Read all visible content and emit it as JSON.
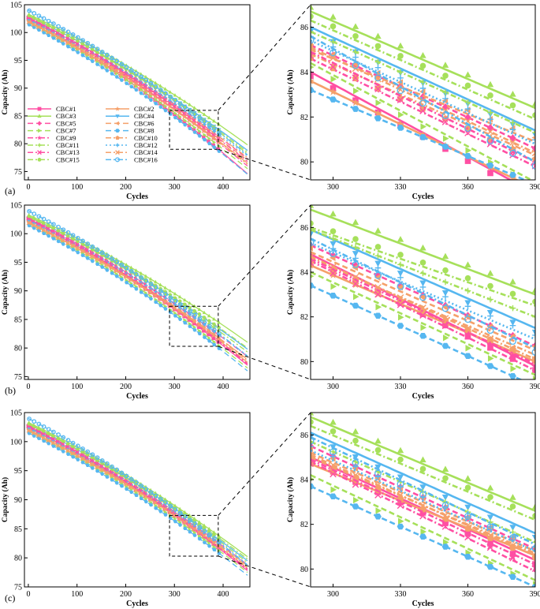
{
  "figure": {
    "panels": [
      {
        "label": "(a)"
      },
      {
        "label": "(b)"
      },
      {
        "label": "(c)"
      }
    ]
  },
  "series_styles": [
    {
      "name": "CBC#1",
      "color": "#ff4fa3",
      "dash": "solid",
      "marker": "square"
    },
    {
      "name": "CBC#2",
      "color": "#f5a06a",
      "dash": "solid",
      "marker": "star"
    },
    {
      "name": "CBC#3",
      "color": "#a6e05a",
      "dash": "solid",
      "marker": "triangle-up"
    },
    {
      "name": "CBC#4",
      "color": "#56b7f0",
      "dash": "solid",
      "marker": "triangle-down"
    },
    {
      "name": "CBC#5",
      "color": "#ff4fa3",
      "dash": "dashed",
      "marker": "diamond"
    },
    {
      "name": "CBC#6",
      "color": "#f5a06a",
      "dash": "dashed",
      "marker": "triangle-left"
    },
    {
      "name": "CBC#7",
      "color": "#a6e05a",
      "dash": "dashed",
      "marker": "triangle-right"
    },
    {
      "name": "CBC#8",
      "color": "#56b7f0",
      "dash": "dashed",
      "marker": "hexagon"
    },
    {
      "name": "CBC#9",
      "color": "#ff4fa3",
      "dash": "dashdot",
      "marker": "star"
    },
    {
      "name": "CBC#10",
      "color": "#f5a06a",
      "dash": "dashdot",
      "marker": "pentagon"
    },
    {
      "name": "CBC#11",
      "color": "#a6e05a",
      "dash": "dashdot",
      "marker": "plus"
    },
    {
      "name": "CBC#12",
      "color": "#56b7f0",
      "dash": "dotted",
      "marker": "plus"
    },
    {
      "name": "CBC#13",
      "color": "#ff4fa3",
      "dash": "dashdot",
      "marker": "x"
    },
    {
      "name": "CBC#14",
      "color": "#f5a06a",
      "dash": "dashdot",
      "marker": "x"
    },
    {
      "name": "CBC#15",
      "color": "#a6e05a",
      "dash": "dashdot",
      "marker": "circle"
    },
    {
      "name": "CBC#16",
      "color": "#56b7f0",
      "dash": "dashdot",
      "marker": "ring"
    }
  ],
  "chart_data": [
    {
      "id": "a-main",
      "type": "line",
      "xlabel": "Cycles",
      "ylabel": "Capacity (Ah)",
      "xlim": [
        -8,
        455
      ],
      "ylim": [
        73.5,
        105
      ],
      "xticks": [
        0,
        100,
        200,
        300,
        400
      ],
      "yticks": [
        75,
        80,
        85,
        90,
        95,
        100,
        105
      ],
      "legend": "inside-lower-left",
      "marker_x": [
        0,
        10,
        20,
        30,
        40,
        50,
        60,
        70,
        80,
        90,
        100,
        110,
        120,
        130,
        140,
        150,
        160,
        170,
        180,
        190,
        200,
        210,
        220,
        230,
        240,
        250,
        260,
        270,
        280,
        290,
        300,
        310,
        320,
        330,
        340,
        350,
        360,
        370,
        380,
        390
      ],
      "zoom_box": {
        "x": [
          290,
          390
        ],
        "y": [
          79,
          86
        ]
      },
      "series": [
        {
          "name": "CBC#1",
          "start": 102.5,
          "end_450": 74.6
        },
        {
          "name": "CBC#2",
          "start": 102.0,
          "end_450": 76.5
        },
        {
          "name": "CBC#3",
          "start": 103.3,
          "end_450": 79.8
        },
        {
          "name": "CBC#4",
          "start": 103.0,
          "end_450": 78.8
        },
        {
          "name": "CBC#5",
          "start": 102.8,
          "end_450": 77.3
        },
        {
          "name": "CBC#6",
          "start": 102.3,
          "end_450": 77.0
        },
        {
          "name": "CBC#7",
          "start": 101.8,
          "end_450": 75.5
        },
        {
          "name": "CBC#8",
          "start": 101.5,
          "end_450": 74.5
        },
        {
          "name": "CBC#9",
          "start": 102.6,
          "end_450": 76.0
        },
        {
          "name": "CBC#10",
          "start": 102.1,
          "end_450": 77.5
        },
        {
          "name": "CBC#11",
          "start": 103.0,
          "end_450": 78.2
        },
        {
          "name": "CBC#12",
          "start": 102.4,
          "end_450": 77.8
        },
        {
          "name": "CBC#13",
          "start": 102.7,
          "end_450": 76.8
        },
        {
          "name": "CBC#14",
          "start": 101.9,
          "end_450": 76.3
        },
        {
          "name": "CBC#15",
          "start": 103.1,
          "end_450": 78.5
        },
        {
          "name": "CBC#16",
          "start": 104.0,
          "end_450": 78.0
        }
      ]
    },
    {
      "id": "a-zoom",
      "type": "line",
      "xlabel": "Cycles",
      "ylabel": "Capacity (Ah)",
      "xlim": [
        290,
        390
      ],
      "ylim": [
        79.2,
        87
      ],
      "xticks": [
        300,
        330,
        360,
        390
      ],
      "yticks": [
        80,
        82,
        84,
        86
      ],
      "marker_x": [
        290,
        300,
        310,
        320,
        330,
        340,
        350,
        360,
        370,
        380,
        390
      ],
      "series": [
        {
          "name": "CBC#1",
          "start": 84.0,
          "end": 78.6
        },
        {
          "name": "CBC#2",
          "start": 83.6,
          "end": 78.8
        },
        {
          "name": "CBC#3",
          "start": 86.7,
          "end": 82.4
        },
        {
          "name": "CBC#4",
          "start": 86.0,
          "end": 81.4
        },
        {
          "name": "CBC#5",
          "start": 85.2,
          "end": 80.6
        },
        {
          "name": "CBC#6",
          "start": 85.0,
          "end": 80.9
        },
        {
          "name": "CBC#7",
          "start": 84.4,
          "end": 79.1
        },
        {
          "name": "CBC#8",
          "start": 83.2,
          "end": 79.0
        },
        {
          "name": "CBC#9",
          "start": 84.6,
          "end": 79.8
        },
        {
          "name": "CBC#10",
          "start": 84.8,
          "end": 80.3
        },
        {
          "name": "CBC#11",
          "start": 85.8,
          "end": 81.3
        },
        {
          "name": "CBC#12",
          "start": 85.4,
          "end": 80.8
        },
        {
          "name": "CBC#13",
          "start": 84.9,
          "end": 80.0
        },
        {
          "name": "CBC#14",
          "start": 85.1,
          "end": 80.4
        },
        {
          "name": "CBC#15",
          "start": 86.3,
          "end": 81.9
        },
        {
          "name": "CBC#16",
          "start": 85.6,
          "end": 80.0
        }
      ]
    },
    {
      "id": "b-main",
      "type": "line",
      "xlabel": "Cycles",
      "ylabel": "Capacity (Ah)",
      "xlim": [
        -8,
        455
      ],
      "ylim": [
        74.5,
        105
      ],
      "xticks": [
        0,
        100,
        200,
        300,
        400
      ],
      "yticks": [
        75,
        80,
        85,
        90,
        95,
        100,
        105
      ],
      "marker_x": [
        0,
        10,
        20,
        30,
        40,
        50,
        60,
        70,
        80,
        90,
        100,
        110,
        120,
        130,
        140,
        150,
        160,
        170,
        180,
        190,
        200,
        210,
        220,
        230,
        240,
        250,
        260,
        270,
        280,
        290,
        300,
        310,
        320,
        330,
        340,
        350,
        360,
        370,
        380,
        390
      ],
      "zoom_box": {
        "x": [
          290,
          390
        ],
        "y": [
          80.3,
          87.3
        ]
      },
      "series": [
        {
          "name": "CBC#1",
          "start": 102.5,
          "end_450": 77.0
        },
        {
          "name": "CBC#2",
          "start": 102.0,
          "end_450": 77.5
        },
        {
          "name": "CBC#3",
          "start": 103.3,
          "end_450": 81.0
        },
        {
          "name": "CBC#4",
          "start": 103.0,
          "end_450": 79.8
        },
        {
          "name": "CBC#5",
          "start": 102.8,
          "end_450": 78.5
        },
        {
          "name": "CBC#6",
          "start": 102.3,
          "end_450": 78.0
        },
        {
          "name": "CBC#7",
          "start": 101.8,
          "end_450": 76.5
        },
        {
          "name": "CBC#8",
          "start": 101.5,
          "end_450": 76.0
        },
        {
          "name": "CBC#9",
          "start": 102.6,
          "end_450": 77.2
        },
        {
          "name": "CBC#10",
          "start": 102.1,
          "end_450": 78.0
        },
        {
          "name": "CBC#11",
          "start": 103.0,
          "end_450": 79.3
        },
        {
          "name": "CBC#12",
          "start": 102.4,
          "end_450": 78.6
        },
        {
          "name": "CBC#13",
          "start": 102.7,
          "end_450": 77.3
        },
        {
          "name": "CBC#14",
          "start": 101.9,
          "end_450": 77.8
        },
        {
          "name": "CBC#15",
          "start": 103.1,
          "end_450": 80.0
        },
        {
          "name": "CBC#16",
          "start": 104.0,
          "end_450": 78.6
        }
      ]
    },
    {
      "id": "b-zoom",
      "type": "line",
      "xlabel": "Cycles",
      "ylabel": "Capacity (Ah)",
      "xlim": [
        290,
        390
      ],
      "ylim": [
        79.2,
        87
      ],
      "xticks": [
        300,
        330,
        360,
        390
      ],
      "yticks": [
        80,
        82,
        84,
        86
      ],
      "marker_x": [
        290,
        300,
        310,
        320,
        330,
        340,
        350,
        360,
        370,
        380,
        390
      ],
      "series": [
        {
          "name": "CBC#1",
          "start": 84.8,
          "end": 79.8
        },
        {
          "name": "CBC#2",
          "start": 84.3,
          "end": 80.0
        },
        {
          "name": "CBC#3",
          "start": 86.8,
          "end": 83.0
        },
        {
          "name": "CBC#4",
          "start": 85.9,
          "end": 81.5
        },
        {
          "name": "CBC#5",
          "start": 85.2,
          "end": 80.7
        },
        {
          "name": "CBC#6",
          "start": 84.9,
          "end": 80.5
        },
        {
          "name": "CBC#7",
          "start": 84.0,
          "end": 79.4
        },
        {
          "name": "CBC#8",
          "start": 83.4,
          "end": 78.9
        },
        {
          "name": "CBC#9",
          "start": 84.5,
          "end": 79.6
        },
        {
          "name": "CBC#10",
          "start": 84.6,
          "end": 80.3
        },
        {
          "name": "CBC#11",
          "start": 85.9,
          "end": 82.0
        },
        {
          "name": "CBC#12",
          "start": 85.3,
          "end": 81.0
        },
        {
          "name": "CBC#13",
          "start": 84.6,
          "end": 79.9
        },
        {
          "name": "CBC#14",
          "start": 84.7,
          "end": 80.1
        },
        {
          "name": "CBC#15",
          "start": 86.0,
          "end": 82.5
        },
        {
          "name": "CBC#16",
          "start": 85.5,
          "end": 80.6
        }
      ]
    },
    {
      "id": "c-main",
      "type": "line",
      "xlabel": "Cycles",
      "ylabel": "Capacity (Ah)",
      "xlim": [
        -8,
        455
      ],
      "ylim": [
        75,
        105
      ],
      "xticks": [
        0,
        100,
        200,
        300,
        400
      ],
      "yticks": [
        75,
        80,
        85,
        90,
        95,
        100,
        105
      ],
      "marker_x": [
        0,
        10,
        20,
        30,
        40,
        50,
        60,
        70,
        80,
        90,
        100,
        110,
        120,
        130,
        140,
        150,
        160,
        170,
        180,
        190,
        200,
        210,
        220,
        230,
        240,
        250,
        260,
        270,
        280,
        290,
        300,
        310,
        320,
        330,
        340,
        350,
        360,
        370,
        380,
        390
      ],
      "zoom_box": {
        "x": [
          290,
          390
        ],
        "y": [
          80.3,
          87.3
        ]
      },
      "series": [
        {
          "name": "CBC#1",
          "start": 102.5,
          "end_450": 77.8
        },
        {
          "name": "CBC#2",
          "start": 102.0,
          "end_450": 78.2
        },
        {
          "name": "CBC#3",
          "start": 103.3,
          "end_450": 80.2
        },
        {
          "name": "CBC#4",
          "start": 103.0,
          "end_450": 79.5
        },
        {
          "name": "CBC#5",
          "start": 102.8,
          "end_450": 78.8
        },
        {
          "name": "CBC#6",
          "start": 102.3,
          "end_450": 78.6
        },
        {
          "name": "CBC#7",
          "start": 101.8,
          "end_450": 77.5
        },
        {
          "name": "CBC#8",
          "start": 101.5,
          "end_450": 77.0
        },
        {
          "name": "CBC#9",
          "start": 102.6,
          "end_450": 78.0
        },
        {
          "name": "CBC#10",
          "start": 102.1,
          "end_450": 78.5
        },
        {
          "name": "CBC#11",
          "start": 103.0,
          "end_450": 79.2
        },
        {
          "name": "CBC#12",
          "start": 102.4,
          "end_450": 78.7
        },
        {
          "name": "CBC#13",
          "start": 102.7,
          "end_450": 78.1
        },
        {
          "name": "CBC#14",
          "start": 101.9,
          "end_450": 78.3
        },
        {
          "name": "CBC#15",
          "start": 103.1,
          "end_450": 79.8
        },
        {
          "name": "CBC#16",
          "start": 104.0,
          "end_450": 78.8
        }
      ]
    },
    {
      "id": "c-zoom",
      "type": "line",
      "xlabel": "Cycles",
      "ylabel": "Capacity (Ah)",
      "xlim": [
        290,
        390
      ],
      "ylim": [
        79.2,
        87
      ],
      "xticks": [
        300,
        330,
        360,
        390
      ],
      "yticks": [
        80,
        82,
        84,
        86
      ],
      "marker_x": [
        290,
        300,
        310,
        320,
        330,
        340,
        350,
        360,
        370,
        380,
        390
      ],
      "series": [
        {
          "name": "CBC#1",
          "start": 85.0,
          "end": 80.4
        },
        {
          "name": "CBC#2",
          "start": 84.7,
          "end": 80.6
        },
        {
          "name": "CBC#3",
          "start": 86.8,
          "end": 82.6
        },
        {
          "name": "CBC#4",
          "start": 86.1,
          "end": 81.6
        },
        {
          "name": "CBC#5",
          "start": 85.5,
          "end": 80.9
        },
        {
          "name": "CBC#6",
          "start": 85.2,
          "end": 80.8
        },
        {
          "name": "CBC#7",
          "start": 84.2,
          "end": 79.5
        },
        {
          "name": "CBC#8",
          "start": 83.7,
          "end": 79.2
        },
        {
          "name": "CBC#9",
          "start": 84.8,
          "end": 79.9
        },
        {
          "name": "CBC#10",
          "start": 85.0,
          "end": 80.7
        },
        {
          "name": "CBC#11",
          "start": 85.7,
          "end": 81.2
        },
        {
          "name": "CBC#12",
          "start": 85.3,
          "end": 80.8
        },
        {
          "name": "CBC#13",
          "start": 84.9,
          "end": 80.2
        },
        {
          "name": "CBC#14",
          "start": 85.1,
          "end": 80.6
        },
        {
          "name": "CBC#15",
          "start": 86.4,
          "end": 82.2
        },
        {
          "name": "CBC#16",
          "start": 85.9,
          "end": 81.1
        }
      ]
    }
  ]
}
